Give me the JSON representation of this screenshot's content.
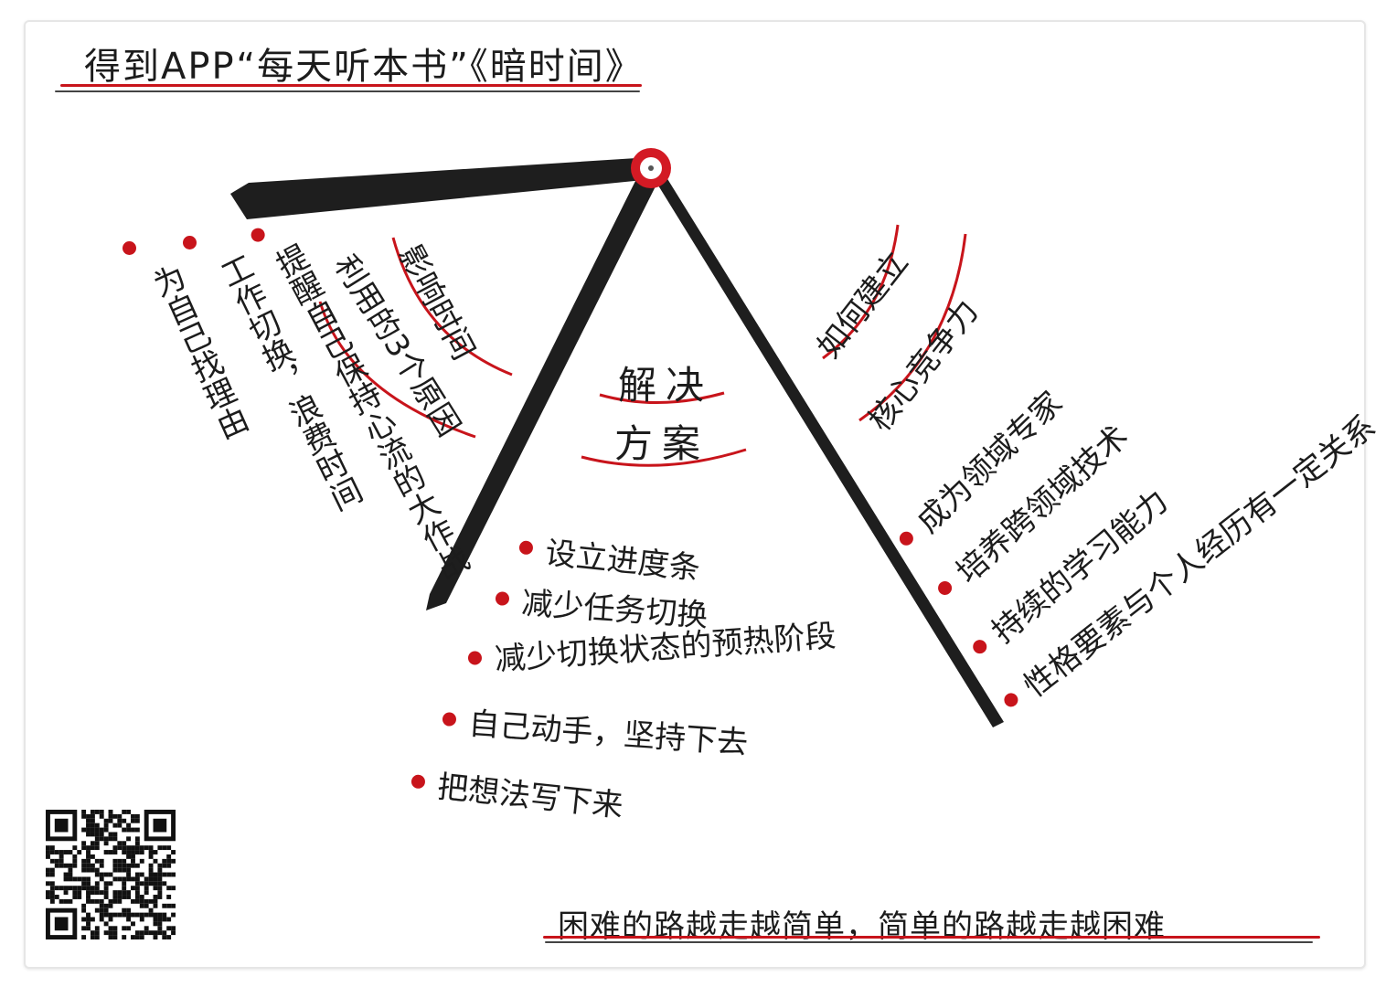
{
  "title": "得到APP“每天听本书”《暗时间》",
  "center": {
    "line1": "解决",
    "line2": "方案"
  },
  "left_arc": {
    "line1": "影响时间",
    "line2": "利用的3个原因",
    "items": [
      "提醒自己保持心流的大作战",
      "工作切换，浪费时间",
      "为自己找理由"
    ]
  },
  "right_arc": {
    "line1": "如何建立",
    "line2": "核心竞争力",
    "items": [
      "成为领域专家",
      "培养跨领域技术",
      "持续的学习能力",
      "性格要素与个人经历有一定关系"
    ]
  },
  "bottom_items": [
    "设立进度条",
    "减少任务切换",
    "减少切换状态的预热阶段",
    "自己动手，坚持下去",
    "把想法写下来"
  ],
  "quote": "困难的路越走越简单，简单的路越走越困难",
  "colors": {
    "accent": "#c8141b",
    "ink": "#1c1c1c"
  },
  "icons": {
    "qr": "qr-code-icon",
    "hub": "target-circle-icon"
  }
}
